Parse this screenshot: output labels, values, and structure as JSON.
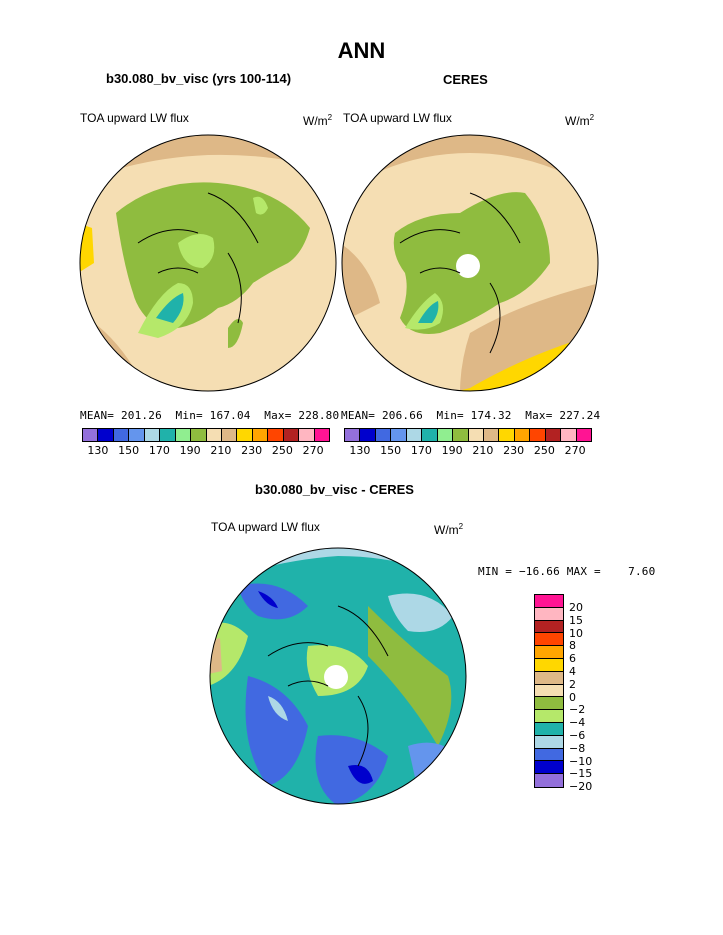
{
  "main_title": "ANN",
  "panels": {
    "model": {
      "title": "b30.080_bv_visc (yrs 100-114)",
      "variable": "TOA upward LW flux",
      "units": "W/m",
      "units_sup": "2",
      "stats": {
        "mean_label": "MEAN=",
        "mean": "201.26",
        "min_label": "Min=",
        "min": "167.04",
        "max_label": "Max=",
        "max": "228.80"
      }
    },
    "obs": {
      "title": "CERES",
      "variable": "TOA upward LW flux",
      "units": "W/m",
      "units_sup": "2",
      "stats": {
        "mean_label": "MEAN=",
        "mean": "206.66",
        "min_label": "Min=",
        "min": "174.32",
        "max_label": "Max=",
        "max": "227.24"
      }
    },
    "diff": {
      "title": "b30.080_bv_visc - CERES",
      "variable": "TOA upward LW flux",
      "units": "W/m",
      "units_sup": "2",
      "stats": {
        "min_label": "MIN =",
        "min": "−16.66",
        "max_label": "MAX =",
        "max": "7.60"
      }
    }
  },
  "abs_colorbar": {
    "colors": [
      "#9370db",
      "#0000cd",
      "#4169e1",
      "#6495ed",
      "#add8e6",
      "#20b2aa",
      "#90ee90",
      "#8fbc3f",
      "#f5deb3",
      "#deb887",
      "#ffd700",
      "#ffa500",
      "#ff4500",
      "#b22222",
      "#ffb6c1",
      "#ff1493"
    ],
    "tick_labels": [
      "130",
      "150",
      "170",
      "190",
      "210",
      "230",
      "250",
      "270"
    ]
  },
  "diff_colorbar": {
    "colors": [
      "#ff1493",
      "#ffb6c1",
      "#b22222",
      "#ff4500",
      "#ffa500",
      "#ffd700",
      "#deb887",
      "#f5deb3",
      "#8fbc3f",
      "#b5e86a",
      "#20b2aa",
      "#add8e6",
      "#4169e1",
      "#0000cd",
      "#9370db"
    ],
    "tick_labels": [
      "20",
      "15",
      "10",
      "8",
      "6",
      "4",
      "2",
      "0",
      "−2",
      "−4",
      "−6",
      "−8",
      "−10",
      "−15",
      "−20"
    ]
  }
}
